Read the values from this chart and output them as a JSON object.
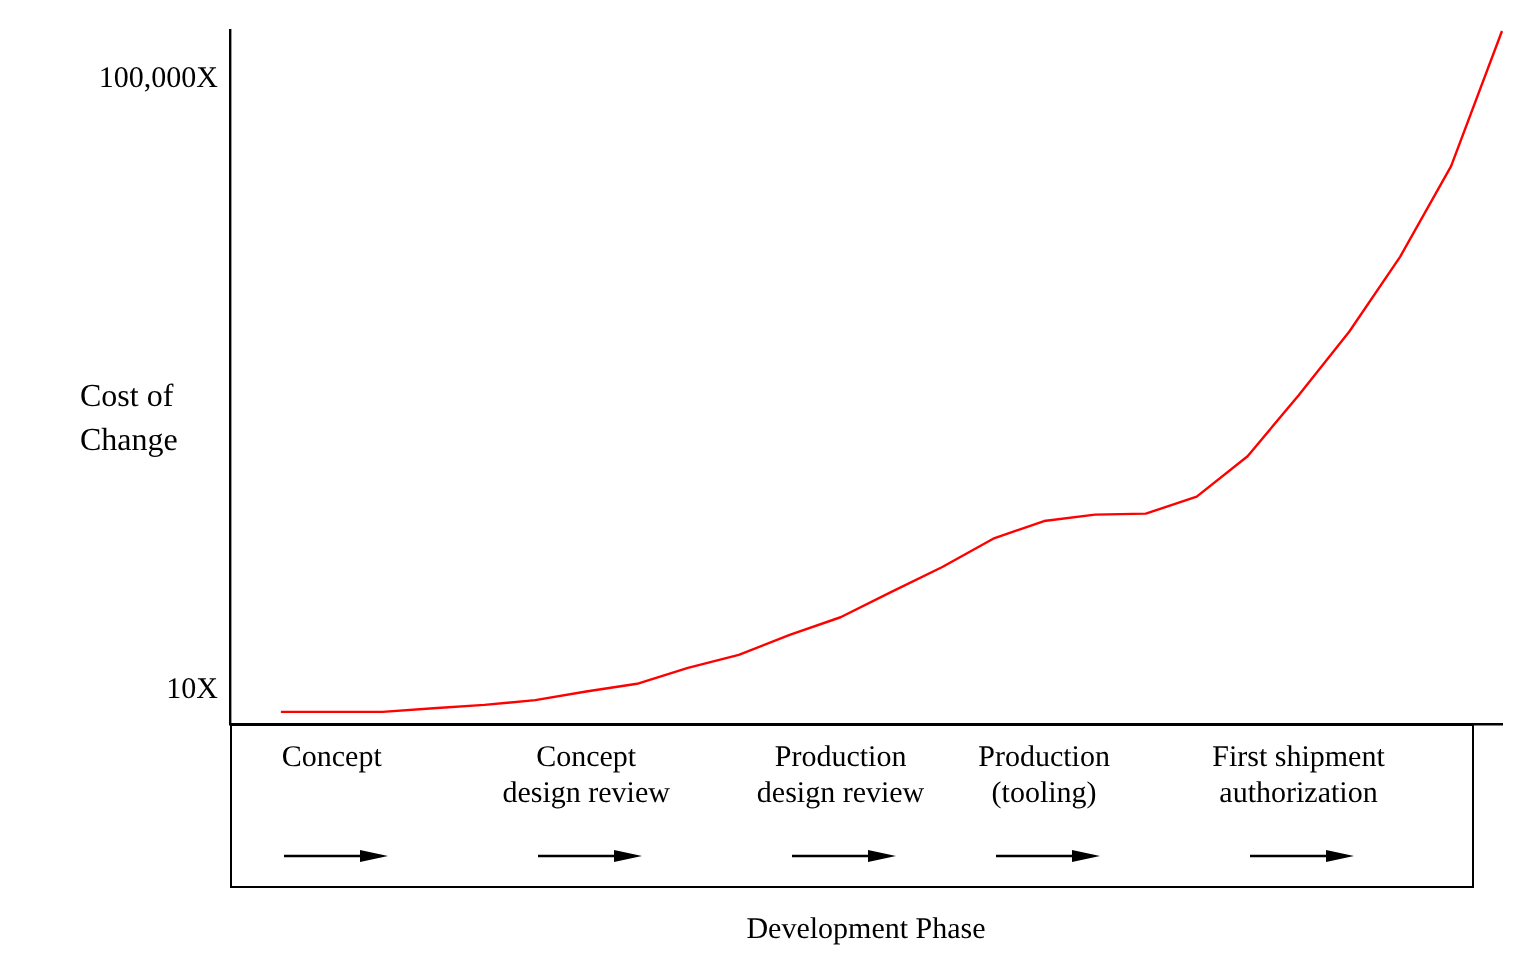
{
  "chart_data": {
    "type": "line",
    "xlabel": "Development Phase",
    "ylabel": "Cost of\nChange",
    "categories": [
      null,
      null,
      "Concept",
      null,
      null,
      null,
      null,
      "Concept\ndesign review",
      null,
      null,
      null,
      null,
      "Production\ndesign review",
      null,
      null,
      null,
      "Production\n(tooling)",
      null,
      null,
      null,
      null,
      "First shipment\nauthorization",
      null,
      null,
      null,
      null
    ],
    "series": [
      {
        "color": "#ff0000",
        "values": [
          null,
          7.2,
          7.2,
          7.2,
          7.6,
          8.0,
          8.6,
          9.8,
          11,
          14,
          17,
          23,
          30,
          44,
          64,
          98,
          128,
          141,
          143,
          185,
          340,
          850,
          2230,
          6900,
          27000,
          207000
        ]
      }
    ],
    "log": true,
    "ylim": [
      6,
      210000
    ],
    "yticks": [
      {
        "value": 10,
        "label": "10X"
      },
      {
        "value": 100000,
        "label": "100,000X"
      }
    ],
    "grid": false,
    "legend": false,
    "marker": "none",
    "line_style": "solid"
  }
}
